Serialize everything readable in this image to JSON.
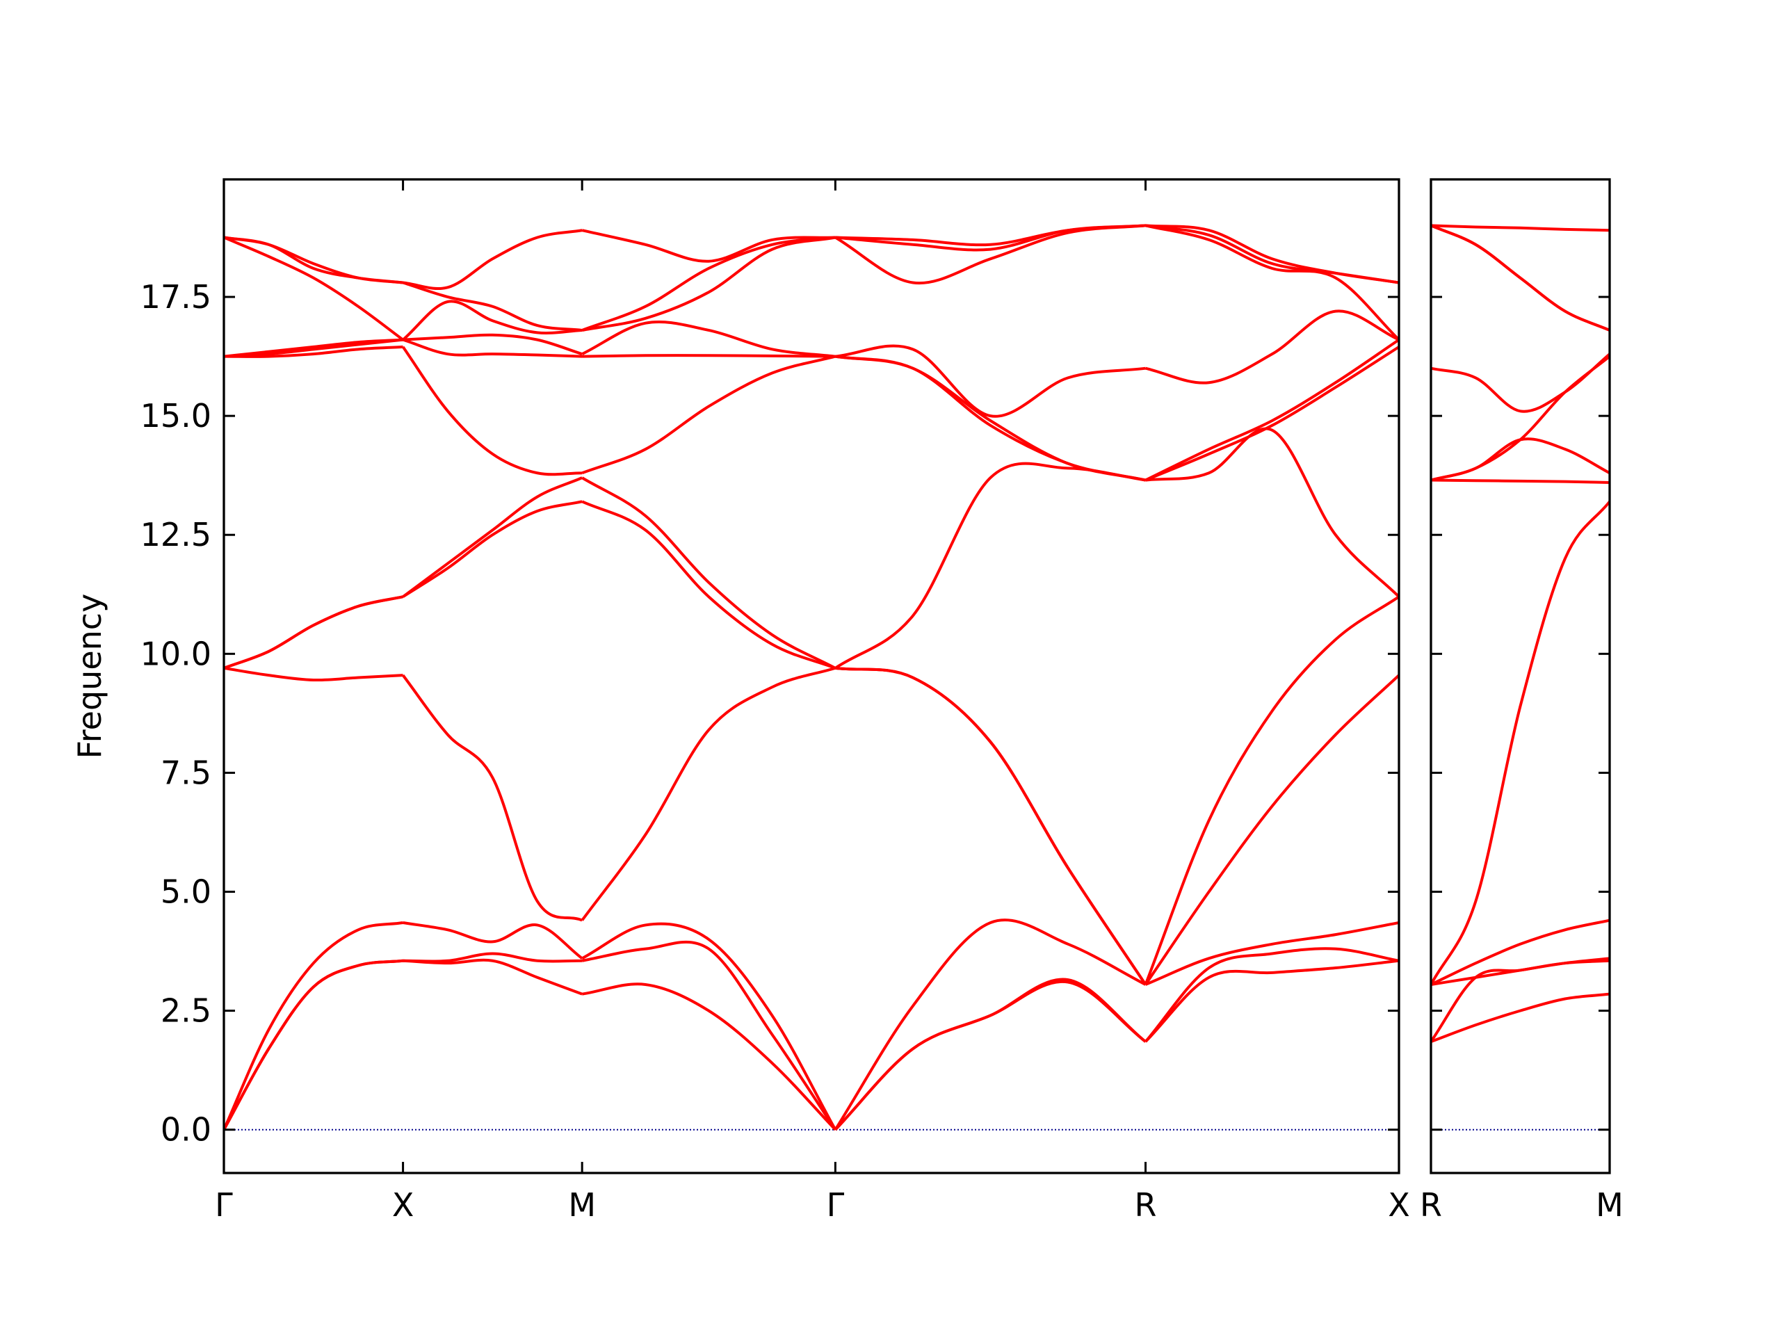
{
  "chart_data": [
    {
      "type": "line",
      "ylabel": "Frequency",
      "color": "#ff0000",
      "x": [
        0,
        0.25,
        0.5,
        0.75,
        1,
        1.25,
        1.5,
        1.75,
        2,
        2.354,
        2.707,
        3.061,
        3.414,
        3.847,
        4.28,
        4.713,
        5.146,
        5.5,
        5.853,
        6.207,
        6.561
      ],
      "xlim": [
        0,
        6.561
      ],
      "xticks": [
        {
          "value": 0,
          "label": "Γ"
        },
        {
          "value": 1,
          "label": "X"
        },
        {
          "value": 2,
          "label": "M"
        },
        {
          "value": 3.414,
          "label": "Γ"
        },
        {
          "value": 5.146,
          "label": "R"
        },
        {
          "value": 6.561,
          "label": "X"
        }
      ],
      "ylim": [
        -0.91,
        19.97
      ],
      "yticks": [
        {
          "value": 0,
          "label": "0.0"
        },
        {
          "value": 2.5,
          "label": "2.5"
        },
        {
          "value": 5,
          "label": "5.0"
        },
        {
          "value": 7.5,
          "label": "7.5"
        },
        {
          "value": 10,
          "label": "10.0"
        },
        {
          "value": 12.5,
          "label": "12.5"
        },
        {
          "value": 15,
          "label": "15.0"
        },
        {
          "value": 17.5,
          "label": "17.5"
        }
      ],
      "hline": 0,
      "hline_color": "#00008b",
      "series": [
        {
          "values": [
            0,
            1.7,
            3.0,
            3.45,
            3.55,
            3.5,
            3.55,
            3.2,
            2.85,
            3.05,
            2.5,
            1.4,
            0,
            1.7,
            2.4,
            3.1,
            1.85,
            3.2,
            3.3,
            3.4,
            3.55
          ]
        },
        {
          "values": [
            0,
            1.7,
            3.0,
            3.45,
            3.55,
            3.55,
            3.7,
            3.55,
            3.55,
            3.8,
            3.8,
            2.0,
            0,
            1.7,
            2.4,
            3.15,
            1.85,
            3.4,
            3.7,
            3.8,
            3.55
          ]
        },
        {
          "values": [
            0,
            2.1,
            3.5,
            4.2,
            4.35,
            4.2,
            3.95,
            4.3,
            3.6,
            4.3,
            4.0,
            2.4,
            0,
            2.6,
            4.35,
            3.9,
            3.05,
            3.6,
            3.9,
            4.1,
            4.35
          ]
        },
        {
          "values": [
            9.7,
            9.55,
            9.45,
            9.5,
            9.55,
            8.3,
            7.4,
            4.8,
            4.4,
            6.2,
            8.4,
            9.3,
            9.7,
            9.5,
            8.15,
            5.5,
            3.05,
            5.0,
            6.8,
            8.3,
            9.55
          ]
        },
        {
          "values": [
            9.7,
            10.05,
            10.6,
            11.0,
            11.2,
            11.8,
            12.5,
            13.0,
            13.2,
            12.6,
            11.2,
            10.2,
            9.7,
            9.5,
            8.15,
            5.5,
            3.05,
            6.5,
            8.8,
            10.3,
            11.2
          ]
        },
        {
          "values": [
            9.7,
            10.05,
            10.6,
            11.0,
            11.2,
            11.9,
            12.6,
            13.3,
            13.7,
            12.9,
            11.5,
            10.4,
            9.7,
            10.8,
            13.7,
            13.9,
            13.65,
            13.8,
            14.7,
            12.5,
            11.2
          ]
        },
        {
          "values": [
            16.25,
            16.25,
            16.3,
            16.4,
            16.45,
            15.1,
            14.2,
            13.8,
            13.8,
            14.3,
            15.2,
            15.9,
            16.25,
            16.0,
            14.8,
            14.0,
            13.65,
            14.2,
            14.8,
            15.6,
            16.45
          ]
        },
        {
          "values": [
            16.25,
            16.3,
            16.4,
            16.5,
            16.6,
            16.3,
            16.3,
            16.28,
            16.25,
            16.27,
            16.27,
            16.26,
            16.25,
            16.0,
            14.9,
            14.0,
            13.65,
            14.3,
            14.9,
            15.7,
            16.6
          ]
        },
        {
          "values": [
            16.25,
            16.35,
            16.45,
            16.55,
            16.6,
            16.65,
            16.7,
            16.6,
            16.3,
            16.95,
            16.8,
            16.4,
            16.25,
            16.4,
            15.0,
            15.8,
            16.0,
            15.7,
            16.3,
            17.2,
            16.6
          ]
        },
        {
          "values": [
            18.75,
            18.35,
            17.9,
            17.3,
            16.6,
            17.4,
            17.0,
            16.75,
            16.8,
            17.05,
            17.6,
            18.5,
            18.75,
            17.8,
            18.3,
            18.85,
            19.0,
            18.7,
            18.1,
            17.9,
            16.6
          ]
        },
        {
          "values": [
            18.75,
            18.6,
            18.1,
            17.9,
            17.8,
            17.5,
            17.3,
            16.9,
            16.8,
            17.3,
            18.1,
            18.6,
            18.75,
            18.6,
            18.5,
            18.9,
            19.0,
            18.8,
            18.2,
            18.0,
            17.8
          ]
        },
        {
          "values": [
            18.75,
            18.6,
            18.2,
            17.9,
            17.8,
            17.7,
            18.3,
            18.75,
            18.9,
            18.6,
            18.25,
            18.7,
            18.75,
            18.7,
            18.6,
            18.9,
            19.0,
            18.9,
            18.3,
            18.0,
            17.8
          ]
        }
      ]
    },
    {
      "type": "line",
      "color": "#ff0000",
      "x": [
        0,
        0.354,
        0.707,
        1.061,
        1.414
      ],
      "xlim": [
        0,
        1.414
      ],
      "xticks": [
        {
          "value": 0,
          "label": "R"
        },
        {
          "value": 1.414,
          "label": "M"
        }
      ],
      "ylim": [
        -0.91,
        19.97
      ],
      "yticks": [
        0,
        2.5,
        5,
        7.5,
        10,
        12.5,
        15,
        17.5
      ],
      "ytick_labels": false,
      "hline": 0,
      "hline_color": "#00008b",
      "series": [
        {
          "values": [
            1.85,
            2.2,
            2.5,
            2.75,
            2.85
          ]
        },
        {
          "values": [
            1.85,
            3.2,
            3.35,
            3.5,
            3.55
          ]
        },
        {
          "values": [
            3.05,
            3.2,
            3.35,
            3.5,
            3.6
          ]
        },
        {
          "values": [
            3.05,
            3.5,
            3.9,
            4.2,
            4.4
          ]
        },
        {
          "values": [
            3.05,
            4.8,
            8.9,
            12.0,
            13.2
          ]
        },
        {
          "values": [
            13.65,
            13.64,
            13.63,
            13.62,
            13.6
          ]
        },
        {
          "values": [
            13.65,
            13.9,
            14.5,
            14.3,
            13.8
          ]
        },
        {
          "values": [
            13.65,
            13.9,
            14.5,
            15.5,
            16.25
          ]
        },
        {
          "values": [
            16.0,
            15.8,
            15.1,
            15.5,
            16.3
          ]
        },
        {
          "values": [
            19.0,
            18.6,
            17.9,
            17.2,
            16.8
          ]
        },
        {
          "values": [
            19.0,
            18.6,
            17.9,
            17.2,
            16.8
          ]
        },
        {
          "values": [
            19.0,
            18.97,
            18.95,
            18.92,
            18.9
          ]
        }
      ]
    }
  ]
}
